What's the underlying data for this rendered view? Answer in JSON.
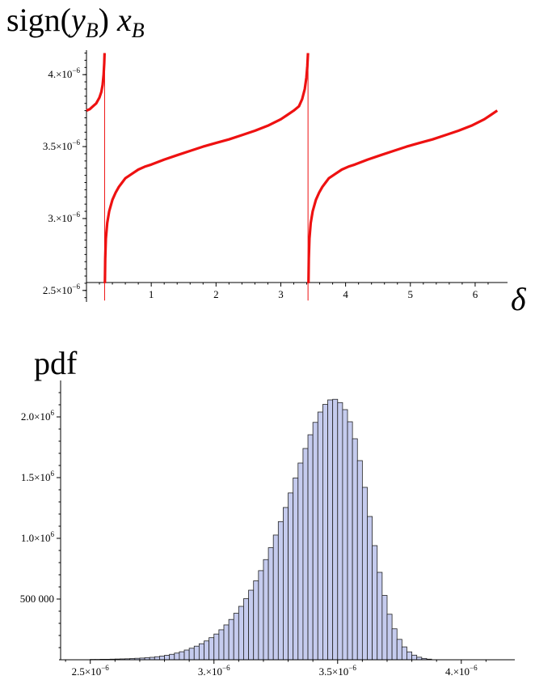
{
  "chart_data": [
    {
      "type": "scatter",
      "title": "",
      "ylabel_parts": {
        "main": "sign(",
        "y_var": "y",
        "y_sub": "B",
        "mid": ") ",
        "x_var": "x",
        "x_sub": "B"
      },
      "xlabel": "δ",
      "xlim": [
        0,
        6.4
      ],
      "ylim": [
        2.42,
        4.17
      ],
      "y_scale_note": "×10^-6",
      "x_ticks": [
        1,
        2,
        3,
        4,
        5,
        6
      ],
      "x_tick_labels": [
        "1",
        "2",
        "3",
        "4",
        "5",
        "6"
      ],
      "y_ticks": [
        2.5,
        3.0,
        3.5,
        4.0
      ],
      "y_tick_labels": [
        {
          "mant": "2.5",
          "exp": "−6"
        },
        {
          "mant": "3.",
          "exp": "−6"
        },
        {
          "mant": "3.5",
          "exp": "−6"
        },
        {
          "mant": "4.",
          "exp": "−6"
        }
      ],
      "line_color": "#ee1111",
      "singularities": [
        0.28,
        3.42
      ],
      "x_period": 3.1416,
      "series": [
        {
          "x": [
            0.0,
            0.05,
            0.1,
            0.15,
            0.2,
            0.23,
            0.25,
            0.265,
            0.275,
            0.28,
            0.285,
            0.29,
            0.3,
            0.32,
            0.35,
            0.4,
            0.45,
            0.5,
            0.55,
            0.6,
            0.7,
            0.8,
            0.9,
            1.0,
            1.2,
            1.4,
            1.6,
            1.8,
            2.0,
            2.2,
            2.4,
            2.6,
            2.8,
            3.0,
            3.1,
            3.2,
            3.28,
            3.33,
            3.37,
            3.395,
            3.41,
            3.42
          ],
          "y": [
            3.75,
            3.76,
            3.78,
            3.8,
            3.84,
            3.88,
            3.93,
            4.0,
            4.08,
            4.15,
            2.55,
            2.72,
            2.86,
            2.97,
            3.05,
            3.13,
            3.18,
            3.22,
            3.25,
            3.28,
            3.31,
            3.34,
            3.36,
            3.375,
            3.41,
            3.44,
            3.47,
            3.5,
            3.525,
            3.55,
            3.58,
            3.61,
            3.645,
            3.69,
            3.72,
            3.75,
            3.78,
            3.83,
            3.9,
            3.98,
            4.06,
            4.15
          ]
        }
      ]
    },
    {
      "type": "bar",
      "title": "",
      "ylabel": "pdf",
      "xlim": [
        2.38,
        4.2
      ],
      "ylim": [
        0,
        2300000
      ],
      "x_ticks": [
        2.5,
        3.0,
        3.5,
        4.0
      ],
      "x_tick_labels": [
        {
          "mant": "2.5",
          "exp": "−6"
        },
        {
          "mant": "3.",
          "exp": "−6"
        },
        {
          "mant": "3.5",
          "exp": "−6"
        },
        {
          "mant": "4.",
          "exp": "−6"
        }
      ],
      "y_ticks": [
        500000,
        1000000,
        1500000,
        2000000
      ],
      "y_tick_labels": [
        {
          "plain": "500 000"
        },
        {
          "mant": "1.0",
          "exp": "6"
        },
        {
          "mant": "1.5",
          "exp": "6"
        },
        {
          "mant": "2.0",
          "exp": "6"
        }
      ],
      "bar_fill": "#c5cbee",
      "bar_stroke": "#222222",
      "bin_start": 2.5,
      "bin_width": 0.02,
      "values": [
        3000,
        3000,
        4000,
        4000,
        5000,
        6000,
        7000,
        8000,
        10000,
        12000,
        14000,
        17000,
        20000,
        25000,
        30000,
        37000,
        45000,
        55000,
        66000,
        80000,
        95000,
        112000,
        132000,
        155000,
        182000,
        212000,
        247000,
        287000,
        332000,
        383000,
        440000,
        503000,
        573000,
        650000,
        734000,
        825000,
        923000,
        1027000,
        1138000,
        1254000,
        1374000,
        1497000,
        1620000,
        1740000,
        1853000,
        1955000,
        2040000,
        2103000,
        2140000,
        2145000,
        2118000,
        2060000,
        1960000,
        1820000,
        1640000,
        1420000,
        1180000,
        940000,
        720000,
        530000,
        375000,
        255000,
        168000,
        106000,
        65000,
        38000,
        21000,
        11000,
        5000
      ]
    }
  ],
  "labels": {
    "top_ylabel_text": "sign(y_B) x_B",
    "bottom_ylabel": "pdf",
    "delta": "δ"
  }
}
